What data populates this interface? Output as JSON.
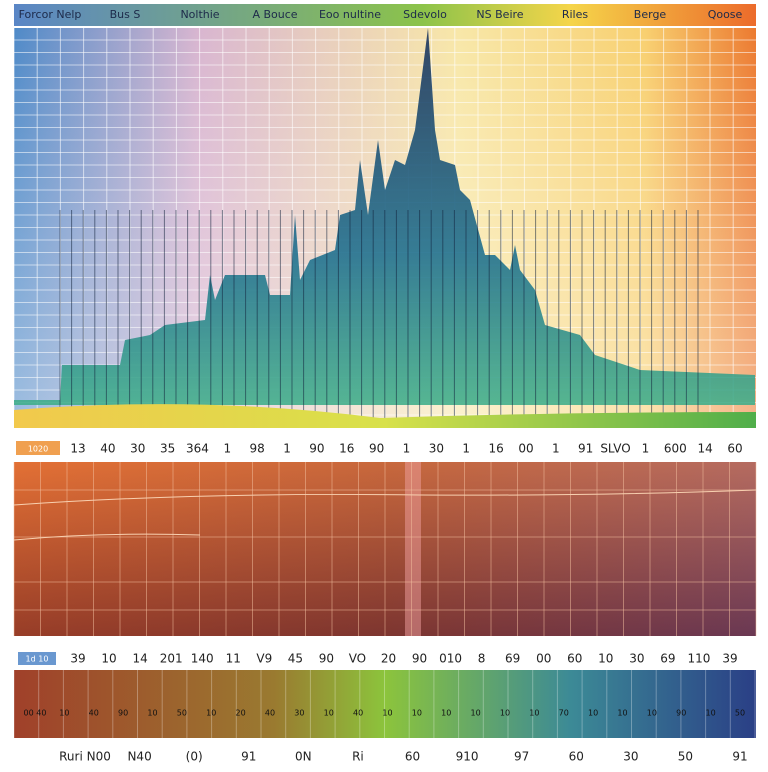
{
  "header": {
    "labels": [
      "Forcor Nelp",
      "Bus S",
      "Nolthie",
      "A Bouce",
      "Eoo nultine",
      "Sdevolo",
      "NS Beire",
      "Riles",
      "Berge",
      "Qoose"
    ]
  },
  "row_1": {
    "badge": "1020",
    "labels": [
      "13",
      "40",
      "30",
      "35",
      "364",
      "1",
      "98",
      "1",
      "90",
      "16",
      "90",
      "1",
      "30",
      "1",
      "16",
      "00",
      "1",
      "91",
      "SLVO",
      "1",
      "600",
      "14",
      "60"
    ]
  },
  "row_2": {
    "badge": "1d 10",
    "labels": [
      "39",
      "10",
      "14",
      "201",
      "140",
      "11",
      "V9",
      "45",
      "90",
      "VO",
      "20",
      "90",
      "010",
      "8",
      "69",
      "00",
      "60",
      "10",
      "30",
      "69",
      "110",
      "39"
    ]
  },
  "band_labels": [
    "00 40",
    "10",
    "40",
    "90",
    "10",
    "50",
    "10",
    "20",
    "40",
    "30",
    "10",
    "40",
    "10",
    "10",
    "10",
    "10",
    "10",
    "10",
    "70",
    "10",
    "10",
    "10",
    "90",
    "10",
    "50"
  ],
  "footer": {
    "labels": [
      "Ruri N00",
      "N40",
      "(0)",
      "91",
      "0N",
      "Ri",
      "60",
      "910",
      "97",
      "60",
      "30",
      "50",
      "91"
    ]
  }
}
